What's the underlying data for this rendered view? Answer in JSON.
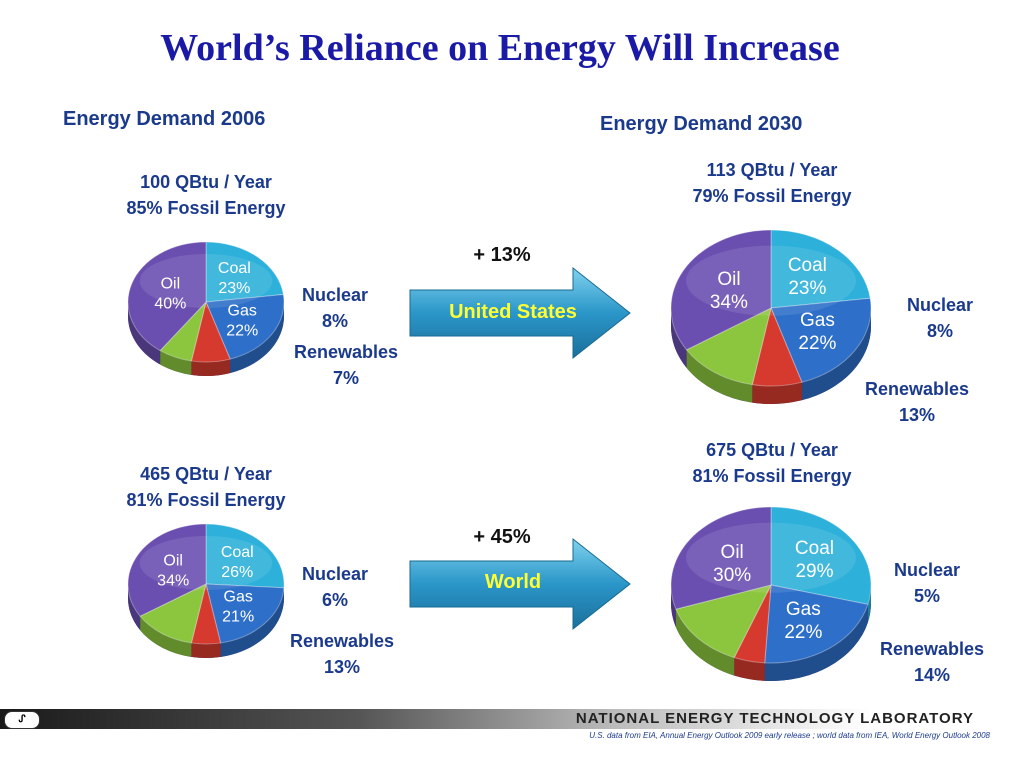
{
  "title": "World’s Reliance on Energy Will Increase",
  "sections": {
    "left_title": "Energy Demand 2006",
    "right_title": "Energy Demand 2030"
  },
  "rows": [
    {
      "arrow_label": "United States",
      "growth": "+ 13%",
      "left": {
        "total": "100 QBtu / Year",
        "fossil": "85% Fossil Energy"
      },
      "right": {
        "total": "113 QBtu / Year",
        "fossil": "79% Fossil Energy"
      }
    },
    {
      "arrow_label": "World",
      "growth": "+ 45%",
      "left": {
        "total": "465 QBtu / Year",
        "fossil": "81% Fossil Energy"
      },
      "right": {
        "total": "675 QBtu / Year",
        "fossil": "81% Fossil Energy"
      }
    }
  ],
  "colors": {
    "Coal": "#2db0da",
    "Gas": "#2e6fc9",
    "Nuclear": "#d63a2e",
    "Renewables": "#8cc63f",
    "Oil": "#6a4fb0",
    "arrow": "#2a96c8",
    "text": "#1b3a8c"
  },
  "chart_data": [
    {
      "type": "pie",
      "title": "Energy Demand 2006 - United States",
      "categories": [
        "Coal",
        "Gas",
        "Nuclear",
        "Renewables",
        "Oil"
      ],
      "values": [
        23,
        22,
        8,
        7,
        40
      ],
      "labels": [
        "Coal 23%",
        "Gas 22%",
        "Nuclear 8%",
        "Renewables 7%",
        "Oil 40%"
      ],
      "label_text": {
        "Coal": [
          "Coal",
          "23%"
        ],
        "Gas": [
          "Gas",
          "22%"
        ],
        "Oil": [
          "Oil",
          "40%"
        ],
        "Nuclear": [
          "Nuclear",
          "8%"
        ],
        "Renewables": [
          "Renewables",
          "7%"
        ]
      }
    },
    {
      "type": "pie",
      "title": "Energy Demand 2030 - United States",
      "categories": [
        "Coal",
        "Gas",
        "Nuclear",
        "Renewables",
        "Oil"
      ],
      "values": [
        23,
        22,
        8,
        13,
        34
      ],
      "labels": [
        "Coal 23%",
        "Gas 22%",
        "Nuclear 8%",
        "Renewables 13%",
        "Oil 34%"
      ],
      "label_text": {
        "Coal": [
          "Coal",
          "23%"
        ],
        "Gas": [
          "Gas",
          "22%"
        ],
        "Oil": [
          "Oil",
          "34%"
        ],
        "Nuclear": [
          "Nuclear",
          "8%"
        ],
        "Renewables": [
          "Renewables",
          "13%"
        ]
      }
    },
    {
      "type": "pie",
      "title": "Energy Demand 2006 - World",
      "categories": [
        "Coal",
        "Gas",
        "Nuclear",
        "Renewables",
        "Oil"
      ],
      "values": [
        26,
        21,
        6,
        13,
        34
      ],
      "labels": [
        "Coal 26%",
        "Gas 21%",
        "Nuclear 6%",
        "Renewables 13%",
        "Oil 34%"
      ],
      "label_text": {
        "Coal": [
          "Coal",
          "26%"
        ],
        "Gas": [
          "Gas",
          "21%"
        ],
        "Oil": [
          "Oil",
          "34%"
        ],
        "Nuclear": [
          "Nuclear",
          "6%"
        ],
        "Renewables": [
          "Renewables",
          "13%"
        ]
      }
    },
    {
      "type": "pie",
      "title": "Energy Demand 2030 - World",
      "categories": [
        "Coal",
        "Gas",
        "Nuclear",
        "Renewables",
        "Oil"
      ],
      "values": [
        29,
        22,
        5,
        14,
        30
      ],
      "labels": [
        "Coal 29%",
        "Gas 22%",
        "Nuclear 5%",
        "Renewables 14%",
        "Oil 30%"
      ],
      "label_text": {
        "Coal": [
          "Coal",
          "29%"
        ],
        "Gas": [
          "Gas",
          "22%"
        ],
        "Oil": [
          "Oil",
          "30%"
        ],
        "Nuclear": [
          "Nuclear",
          "5%"
        ],
        "Renewables": [
          "Renewables",
          "14%"
        ]
      }
    }
  ],
  "footer": {
    "logo_text": "ᔑ",
    "organization": "NATIONAL ENERGY TECHNOLOGY LABORATORY",
    "source": "U.S. data from EIA, Annual Energy Outlook 2009 early release ; world data from IEA, World Energy Outlook 2008"
  }
}
